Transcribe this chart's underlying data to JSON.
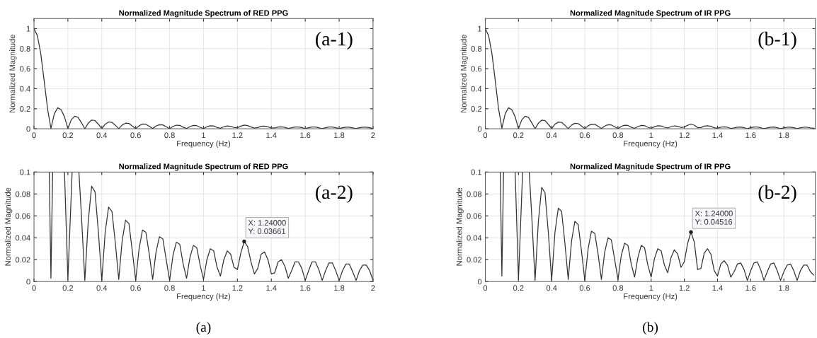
{
  "chart_data": [
    {
      "type": "line",
      "title": "Normalized Magnitude Spectrum of RED PPG",
      "xlabel": "Frequency (Hz)",
      "ylabel": "Normalized Magnitude",
      "x": [
        0,
        0.02,
        0.04,
        0.06,
        0.08,
        0.1,
        0.12,
        0.14,
        0.16,
        0.18,
        0.2,
        0.22,
        0.24,
        0.26,
        0.28,
        0.3,
        0.32,
        0.34,
        0.36,
        0.38,
        0.4,
        0.42,
        0.44,
        0.46,
        0.48,
        0.5,
        0.52,
        0.54,
        0.56,
        0.58,
        0.6,
        0.62,
        0.64,
        0.66,
        0.68,
        0.7,
        0.72,
        0.74,
        0.76,
        0.78,
        0.8,
        0.82,
        0.84,
        0.86,
        0.88,
        0.9,
        0.92,
        0.94,
        0.96,
        0.98,
        1,
        1.02,
        1.04,
        1.06,
        1.08,
        1.1,
        1.12,
        1.14,
        1.16,
        1.18,
        1.2,
        1.22,
        1.24,
        1.26,
        1.28,
        1.3,
        1.32,
        1.34,
        1.36,
        1.38,
        1.4,
        1.42,
        1.44,
        1.46,
        1.48,
        1.5,
        1.52,
        1.54,
        1.56,
        1.58,
        1.6,
        1.62,
        1.64,
        1.66,
        1.68,
        1.7,
        1.72,
        1.74,
        1.76,
        1.78,
        1.8,
        1.82,
        1.84,
        1.86,
        1.88,
        1.9,
        1.92,
        1.94,
        1.96,
        1.98,
        2
      ],
      "series": [
        {
          "color": "#333333",
          "values": [
            1.0,
            0.93,
            0.75,
            0.48,
            0.2,
            0.003,
            0.15,
            0.21,
            0.19,
            0.12,
            0.002,
            0.09,
            0.125,
            0.115,
            0.06,
            0.001,
            0.055,
            0.087,
            0.082,
            0.045,
            0.001,
            0.045,
            0.068,
            0.064,
            0.035,
            0.002,
            0.037,
            0.056,
            0.053,
            0.028,
            0.001,
            0.03,
            0.047,
            0.045,
            0.025,
            0.002,
            0.027,
            0.041,
            0.039,
            0.02,
            0.001,
            0.024,
            0.036,
            0.034,
            0.016,
            0.003,
            0.022,
            0.033,
            0.031,
            0.015,
            0.002,
            0.02,
            0.03,
            0.028,
            0.013,
            0.005,
            0.02,
            0.028,
            0.025,
            0.013,
            0.011,
            0.026,
            0.037,
            0.032,
            0.018,
            0.007,
            0.012,
            0.025,
            0.027,
            0.02,
            0.007,
            0.008,
            0.018,
            0.02,
            0.014,
            0.003,
            0.01,
            0.018,
            0.018,
            0.012,
            0.001,
            0.01,
            0.018,
            0.018,
            0.011,
            0.001,
            0.01,
            0.017,
            0.017,
            0.01,
            0.001,
            0.01,
            0.016,
            0.016,
            0.009,
            0.001,
            0.01,
            0.015,
            0.015,
            0.01,
            0.001
          ]
        }
      ],
      "xlim": [
        0,
        2
      ],
      "xticks": [
        0,
        0.2,
        0.4,
        0.6,
        0.8,
        1,
        1.2,
        1.4,
        1.6,
        1.8,
        2
      ],
      "ylim": [
        0,
        1.1
      ],
      "yticks": [
        0,
        0.2,
        0.4,
        0.6,
        0.8,
        1
      ],
      "grid": true,
      "marker": "none",
      "line_style": "solid",
      "annotations": [
        "(a-1)"
      ]
    },
    {
      "type": "line",
      "title": "Normalized Magnitude Spectrum of RED PPG",
      "xlabel": "Frequency (Hz)",
      "ylabel": "Normalized Magnitude",
      "series": [
        {
          "color": "#333333",
          "x": [
            0.09,
            0.1,
            0.11,
            0.14,
            0.18,
            0.2,
            0.225,
            0.245,
            0.265,
            0.28,
            0.3,
            0.32,
            0.34,
            0.36,
            0.38,
            0.4,
            0.42,
            0.44,
            0.46,
            0.48,
            0.5,
            0.52,
            0.54,
            0.56,
            0.58,
            0.6,
            0.62,
            0.64,
            0.66,
            0.68,
            0.7,
            0.72,
            0.74,
            0.76,
            0.78,
            0.8,
            0.82,
            0.84,
            0.86,
            0.88,
            0.9,
            0.92,
            0.94,
            0.96,
            0.98,
            1,
            1.02,
            1.04,
            1.06,
            1.08,
            1.1,
            1.12,
            1.14,
            1.16,
            1.18,
            1.2,
            1.22,
            1.24,
            1.26,
            1.28,
            1.3,
            1.32,
            1.34,
            1.36,
            1.38,
            1.4,
            1.42,
            1.44,
            1.46,
            1.48,
            1.5,
            1.52,
            1.54,
            1.56,
            1.58,
            1.6,
            1.62,
            1.64,
            1.66,
            1.68,
            1.7,
            1.72,
            1.74,
            1.76,
            1.78,
            1.8,
            1.82,
            1.84,
            1.86,
            1.88,
            1.9,
            1.92,
            1.94,
            1.96,
            1.98,
            2
          ],
          "values": [
            0.1,
            0.003,
            0.1,
            null,
            0.1,
            0.002,
            0.1,
            null,
            0.1,
            0.06,
            0.001,
            0.055,
            0.087,
            0.082,
            0.045,
            0.001,
            0.045,
            0.068,
            0.064,
            0.035,
            0.002,
            0.037,
            0.056,
            0.053,
            0.028,
            0.001,
            0.03,
            0.047,
            0.045,
            0.025,
            0.002,
            0.027,
            0.041,
            0.039,
            0.02,
            0.001,
            0.024,
            0.036,
            0.034,
            0.016,
            0.003,
            0.022,
            0.033,
            0.031,
            0.015,
            0.002,
            0.02,
            0.03,
            0.028,
            0.013,
            0.005,
            0.02,
            0.028,
            0.025,
            0.013,
            0.011,
            0.026,
            0.03661,
            0.032,
            0.018,
            0.007,
            0.012,
            0.025,
            0.027,
            0.02,
            0.007,
            0.008,
            0.018,
            0.02,
            0.014,
            0.003,
            0.01,
            0.018,
            0.018,
            0.012,
            0.001,
            0.01,
            0.018,
            0.018,
            0.011,
            0.001,
            0.01,
            0.017,
            0.017,
            0.01,
            0.001,
            0.01,
            0.016,
            0.016,
            0.009,
            0.001,
            0.01,
            0.015,
            0.015,
            0.01,
            0.001
          ]
        }
      ],
      "xlim": [
        0,
        2
      ],
      "xticks": [
        0,
        0.2,
        0.4,
        0.6,
        0.8,
        1,
        1.2,
        1.4,
        1.6,
        1.8,
        2
      ],
      "ylim": [
        0,
        0.1
      ],
      "yticks": [
        0,
        0.02,
        0.04,
        0.06,
        0.08,
        0.1
      ],
      "grid": true,
      "marker": "none",
      "line_style": "solid",
      "annotations": [
        "(a-2)",
        {
          "text": "X: 1.24000\nY: 0.03661",
          "x": 1.24,
          "y": 0.03661
        },
        "(a)"
      ]
    },
    {
      "type": "line",
      "title": "Normalized Magnitude Spectrum of IR PPG",
      "xlabel": "Frequency (Hz)",
      "ylabel": "Normalized Magnitude",
      "x": [
        0,
        0.02,
        0.04,
        0.06,
        0.08,
        0.1,
        0.12,
        0.14,
        0.16,
        0.18,
        0.2,
        0.22,
        0.24,
        0.26,
        0.28,
        0.3,
        0.32,
        0.34,
        0.36,
        0.38,
        0.4,
        0.42,
        0.44,
        0.46,
        0.48,
        0.5,
        0.52,
        0.54,
        0.56,
        0.58,
        0.6,
        0.62,
        0.64,
        0.66,
        0.68,
        0.7,
        0.72,
        0.74,
        0.76,
        0.78,
        0.8,
        0.82,
        0.84,
        0.86,
        0.88,
        0.9,
        0.92,
        0.94,
        0.96,
        0.98,
        1,
        1.02,
        1.04,
        1.06,
        1.08,
        1.1,
        1.12,
        1.14,
        1.16,
        1.18,
        1.2,
        1.22,
        1.24,
        1.26,
        1.28,
        1.3,
        1.32,
        1.34,
        1.36,
        1.38,
        1.4,
        1.42,
        1.44,
        1.46,
        1.48,
        1.5,
        1.52,
        1.54,
        1.56,
        1.58,
        1.6,
        1.62,
        1.64,
        1.66,
        1.68,
        1.7,
        1.72,
        1.74,
        1.76,
        1.78,
        1.8,
        1.82,
        1.84,
        1.86,
        1.88,
        1.9,
        1.92,
        1.94,
        1.96,
        1.98
      ],
      "series": [
        {
          "color": "#333333",
          "values": [
            1.0,
            0.93,
            0.75,
            0.48,
            0.2,
            0.005,
            0.15,
            0.21,
            0.19,
            0.12,
            0.002,
            0.09,
            0.125,
            0.115,
            0.06,
            0.001,
            0.055,
            0.086,
            0.081,
            0.045,
            0.001,
            0.045,
            0.067,
            0.064,
            0.035,
            0.002,
            0.037,
            0.055,
            0.052,
            0.028,
            0.001,
            0.03,
            0.046,
            0.044,
            0.025,
            0.002,
            0.027,
            0.04,
            0.038,
            0.02,
            0.002,
            0.024,
            0.035,
            0.033,
            0.016,
            0.004,
            0.022,
            0.033,
            0.031,
            0.015,
            0.004,
            0.021,
            0.03,
            0.028,
            0.015,
            0.008,
            0.022,
            0.029,
            0.025,
            0.013,
            0.018,
            0.035,
            0.045,
            0.036,
            0.011,
            0.012,
            0.026,
            0.03,
            0.025,
            0.01,
            0.005,
            0.016,
            0.019,
            0.015,
            0.004,
            0.009,
            0.016,
            0.017,
            0.011,
            0.001,
            0.01,
            0.017,
            0.018,
            0.011,
            0.001,
            0.009,
            0.016,
            0.017,
            0.01,
            0.001,
            0.009,
            0.015,
            0.016,
            0.01,
            0.001,
            0.01,
            0.015,
            0.015,
            0.009,
            0.006
          ]
        }
      ],
      "xlim": [
        0,
        1.99
      ],
      "xticks": [
        0,
        0.2,
        0.4,
        0.6,
        0.8,
        1,
        1.2,
        1.4,
        1.6,
        1.8
      ],
      "ylim": [
        0,
        1.1
      ],
      "yticks": [
        0,
        0.2,
        0.4,
        0.6,
        0.8,
        1
      ],
      "grid": true,
      "marker": "none",
      "line_style": "solid",
      "annotations": [
        "(b-1)"
      ]
    },
    {
      "type": "line",
      "title": "Normalized Magnitude Spectrum of IR PPG",
      "xlabel": "Frequency (Hz)",
      "ylabel": "Normalized Magnitude",
      "series": [
        {
          "color": "#333333",
          "x": [
            0.09,
            0.1,
            0.11,
            0.14,
            0.18,
            0.2,
            0.225,
            0.245,
            0.265,
            0.28,
            0.3,
            0.32,
            0.34,
            0.36,
            0.38,
            0.4,
            0.42,
            0.44,
            0.46,
            0.48,
            0.5,
            0.52,
            0.54,
            0.56,
            0.58,
            0.6,
            0.62,
            0.64,
            0.66,
            0.68,
            0.7,
            0.72,
            0.74,
            0.76,
            0.78,
            0.8,
            0.82,
            0.84,
            0.86,
            0.88,
            0.9,
            0.92,
            0.94,
            0.96,
            0.98,
            1,
            1.02,
            1.04,
            1.06,
            1.08,
            1.1,
            1.12,
            1.14,
            1.16,
            1.18,
            1.2,
            1.22,
            1.24,
            1.26,
            1.28,
            1.3,
            1.32,
            1.34,
            1.36,
            1.38,
            1.4,
            1.42,
            1.44,
            1.46,
            1.48,
            1.5,
            1.52,
            1.54,
            1.56,
            1.58,
            1.6,
            1.62,
            1.64,
            1.66,
            1.68,
            1.7,
            1.72,
            1.74,
            1.76,
            1.78,
            1.8,
            1.82,
            1.84,
            1.86,
            1.88,
            1.9,
            1.92,
            1.94,
            1.96,
            1.98
          ],
          "values": [
            0.1,
            0.005,
            0.1,
            null,
            0.1,
            0.002,
            0.1,
            null,
            0.1,
            0.06,
            0.001,
            0.055,
            0.086,
            0.081,
            0.045,
            0.001,
            0.045,
            0.067,
            0.064,
            0.035,
            0.002,
            0.037,
            0.055,
            0.052,
            0.028,
            0.001,
            0.03,
            0.046,
            0.044,
            0.025,
            0.002,
            0.027,
            0.04,
            0.038,
            0.02,
            0.002,
            0.024,
            0.035,
            0.033,
            0.016,
            0.004,
            0.022,
            0.033,
            0.031,
            0.015,
            0.004,
            0.021,
            0.03,
            0.028,
            0.015,
            0.008,
            0.022,
            0.029,
            0.025,
            0.013,
            0.018,
            0.035,
            0.04516,
            0.036,
            0.011,
            0.012,
            0.026,
            0.03,
            0.025,
            0.01,
            0.005,
            0.016,
            0.019,
            0.015,
            0.004,
            0.009,
            0.016,
            0.017,
            0.011,
            0.001,
            0.01,
            0.017,
            0.018,
            0.011,
            0.001,
            0.009,
            0.016,
            0.017,
            0.01,
            0.001,
            0.009,
            0.015,
            0.016,
            0.01,
            0.001,
            0.01,
            0.015,
            0.015,
            0.009,
            0.006
          ]
        }
      ],
      "xlim": [
        0,
        1.99
      ],
      "xticks": [
        0,
        0.2,
        0.4,
        0.6,
        0.8,
        1,
        1.2,
        1.4,
        1.6,
        1.8
      ],
      "ylim": [
        0,
        0.1
      ],
      "yticks": [
        0,
        0.02,
        0.04,
        0.06,
        0.08,
        0.1
      ],
      "grid": true,
      "marker": "none",
      "line_style": "solid",
      "annotations": [
        "(b-2)",
        {
          "text": "X: 1.24000\nY: 0.04516",
          "x": 1.24,
          "y": 0.04516
        },
        "(b)"
      ]
    }
  ]
}
